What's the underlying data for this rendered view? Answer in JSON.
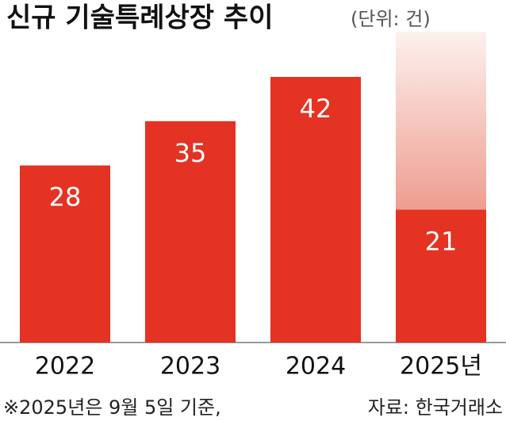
{
  "chart_data": {
    "type": "bar",
    "title": "신규 기술특례상장 추이",
    "subtitle": "(단위: 건)",
    "categories": [
      "2022",
      "2023",
      "2024",
      "2025년"
    ],
    "values": [
      28,
      35,
      42,
      21
    ],
    "color": "#e43223",
    "notes": [
      "※2025년은 9월 5일 기준,",
      "자료: 한국거래소"
    ]
  }
}
